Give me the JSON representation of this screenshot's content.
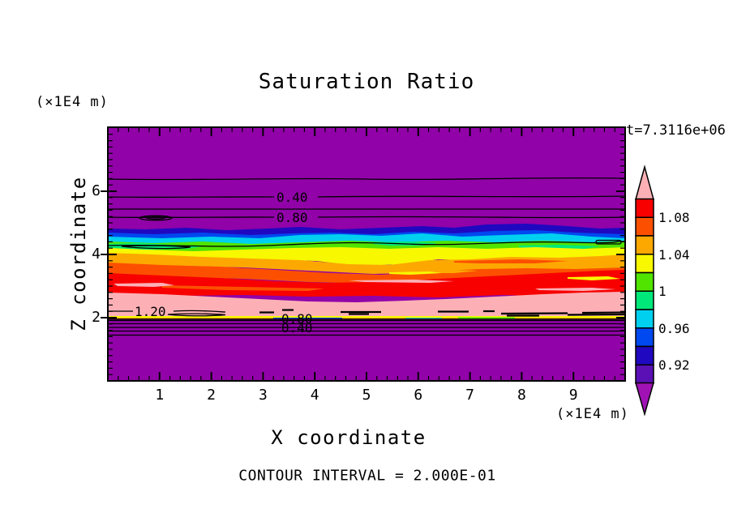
{
  "title": "Saturation Ratio",
  "time_label": "t=7.3116e+06",
  "axis_unit_top": "(×1E4 m)",
  "axis_unit_bottom": "(×1E4 m)",
  "x_axis_label": "X coordinate",
  "y_axis_label": "Z coordinate",
  "footer_note": "CONTOUR INTERVAL = 2.000E-01",
  "palette": {
    "purple": "#9102A8",
    "violet": "#5A10B4",
    "navy": "#2008C0",
    "blue": "#0048F0",
    "cyan": "#00D0F0",
    "springgreen": "#00E87A",
    "chartreuse": "#50E400",
    "yellow": "#F8F800",
    "orange": "#FCA800",
    "orangered": "#FC5000",
    "red": "#F80000",
    "pink": "#FCB0B6",
    "pink_arrow": "#FCB0B6",
    "magenta_arrow": "#A012B4"
  },
  "chart_data": {
    "type": "heatmap",
    "subtype": "filled-contour-with-line-contours",
    "title": "Saturation Ratio",
    "time_annotation": "t=7.3116e+06",
    "xlabel": "X coordinate",
    "ylabel": "Z coordinate",
    "axis_units": "(×1E4 m)",
    "x_range": [
      0,
      10
    ],
    "y_range": [
      0,
      8
    ],
    "x_ticks": [
      "1",
      "2",
      "3",
      "4",
      "5",
      "6",
      "7",
      "8",
      "9"
    ],
    "y_ticks": [
      "2",
      "4",
      "6"
    ],
    "minor_tick_step": 0.2,
    "contour_interval_label": "CONTOUR INTERVAL = 2.000E-01",
    "contour_line_labels": {
      "upper_040": "0.40",
      "upper_080": "0.80",
      "left_120": "1.20",
      "lower_080": "0.80",
      "lower_040": "0.40"
    },
    "colorbar": {
      "labels": [
        "1.08",
        "1.04",
        "1",
        "0.96",
        "0.92"
      ],
      "level_boundaries": [
        1.1,
        1.08,
        1.06,
        1.04,
        1.02,
        1.0,
        0.98,
        0.96,
        0.94,
        0.92,
        0.9
      ],
      "colors_top_to_bottom": [
        "#F80000",
        "#FC5000",
        "#FCA800",
        "#F8F800",
        "#50E400",
        "#00E87A",
        "#00D0F0",
        "#0048F0",
        "#2008C0",
        "#5A10B4"
      ],
      "over_arrow_color": "#FCB0B6",
      "under_arrow_color": "#A012B4"
    },
    "z_profile": [
      {
        "z_band": "5.2–8.0",
        "saturation_ratio": "< 0.90 (purple, uniform, line contours 0.20–0.80)"
      },
      {
        "z_band": "4.6–5.2",
        "saturation_ratio": "0.90–0.98 (navy/blue/cyan band)"
      },
      {
        "z_band": "4.0–4.6",
        "saturation_ratio": "0.98–1.04 (green/yellow band)"
      },
      {
        "z_band": "3.0–4.0",
        "saturation_ratio": "1.04–1.10 (orange/red band)"
      },
      {
        "z_band": "2.1–3.0",
        "saturation_ratio": "> 1.10, peak ≈ 1.2 (pink band)"
      },
      {
        "z_band": "0.0–2.0",
        "saturation_ratio": "< 0.90 (purple, uniform, line contours 0.20–0.80)"
      }
    ]
  }
}
